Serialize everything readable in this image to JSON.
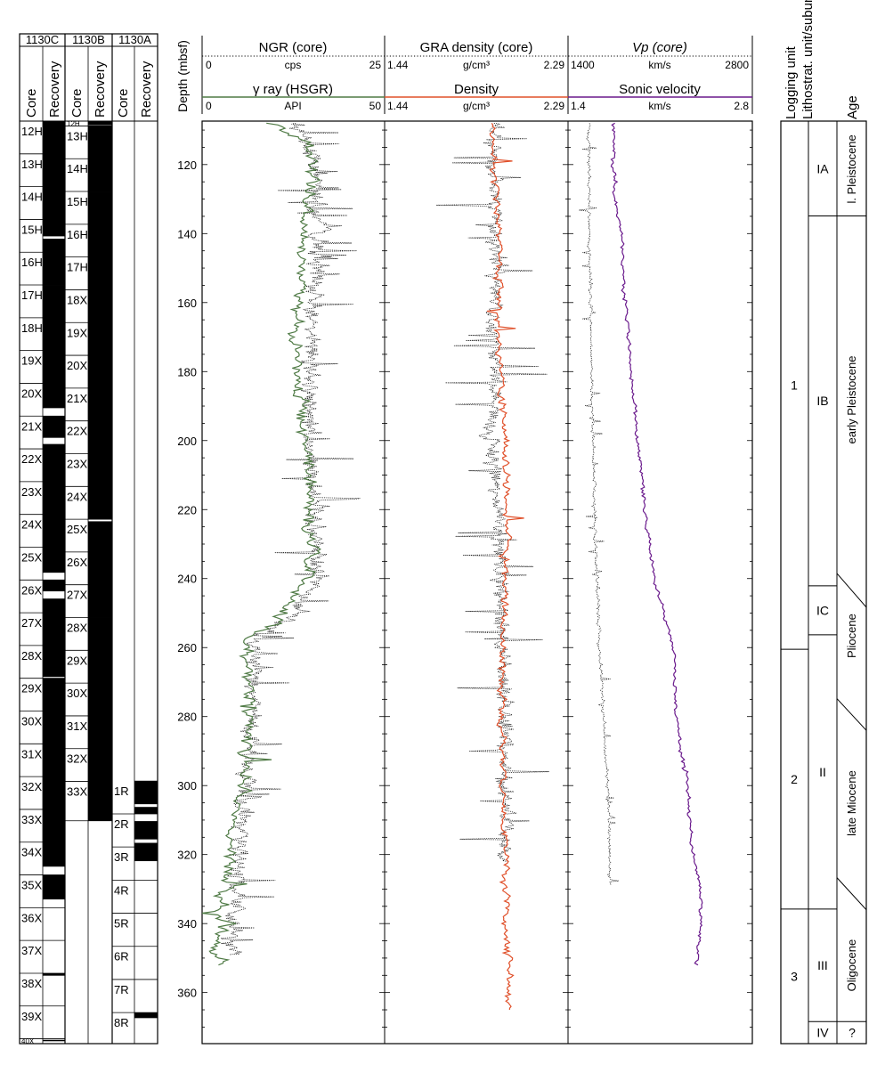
{
  "cores": {
    "holes": [
      {
        "name": "1130C",
        "core_header": "Core",
        "recovery_header": "Recovery",
        "cores": [
          {
            "label": "12H",
            "top": 107.4,
            "bottom": 116.9,
            "recovery": [
              [
                107.4,
                116.9
              ]
            ]
          },
          {
            "label": "13H",
            "top": 116.9,
            "bottom": 126.4,
            "recovery": [
              [
                116.9,
                126.4
              ]
            ]
          },
          {
            "label": "14H",
            "top": 126.4,
            "bottom": 135.9,
            "recovery": [
              [
                126.4,
                135.9
              ]
            ]
          },
          {
            "label": "15H",
            "top": 135.9,
            "bottom": 145.4,
            "recovery": [
              [
                135.9,
                140.8
              ],
              [
                141.5,
                145.4
              ]
            ]
          },
          {
            "label": "16H",
            "top": 145.4,
            "bottom": 154.9,
            "recovery": [
              [
                145.4,
                154.9
              ]
            ]
          },
          {
            "label": "17H",
            "top": 154.9,
            "bottom": 164.4,
            "recovery": [
              [
                154.9,
                164.4
              ]
            ]
          },
          {
            "label": "18H",
            "top": 164.4,
            "bottom": 173.9,
            "recovery": [
              [
                164.4,
                173.9
              ]
            ]
          },
          {
            "label": "19X",
            "top": 173.9,
            "bottom": 183.4,
            "recovery": [
              [
                173.9,
                183.4
              ]
            ]
          },
          {
            "label": "20X",
            "top": 183.4,
            "bottom": 192.9,
            "recovery": [
              [
                183.4,
                190.6
              ]
            ]
          },
          {
            "label": "21X",
            "top": 192.9,
            "bottom": 202.4,
            "recovery": [
              [
                192.9,
                199.2
              ],
              [
                201.0,
                202.4
              ]
            ]
          },
          {
            "label": "22X",
            "top": 202.4,
            "bottom": 211.9,
            "recovery": [
              [
                202.4,
                211.9
              ]
            ]
          },
          {
            "label": "23X",
            "top": 211.9,
            "bottom": 221.4,
            "recovery": [
              [
                211.9,
                221.4
              ]
            ]
          },
          {
            "label": "24X",
            "top": 221.4,
            "bottom": 230.9,
            "recovery": [
              [
                221.4,
                230.9
              ]
            ]
          },
          {
            "label": "25X",
            "top": 230.9,
            "bottom": 240.4,
            "recovery": [
              [
                230.9,
                238.3
              ]
            ]
          },
          {
            "label": "26X",
            "top": 240.4,
            "bottom": 249.9,
            "recovery": [
              [
                240.4,
                243.7
              ],
              [
                245.8,
                249.9
              ]
            ]
          },
          {
            "label": "27X",
            "top": 249.9,
            "bottom": 259.4,
            "recovery": [
              [
                249.9,
                259.4
              ]
            ]
          },
          {
            "label": "28X",
            "top": 259.4,
            "bottom": 268.9,
            "recovery": [
              [
                259.4,
                268.5
              ]
            ]
          },
          {
            "label": "29X",
            "top": 268.9,
            "bottom": 278.4,
            "recovery": [
              [
                268.9,
                278.4
              ]
            ]
          },
          {
            "label": "30X",
            "top": 278.4,
            "bottom": 287.9,
            "recovery": [
              [
                278.4,
                287.9
              ]
            ]
          },
          {
            "label": "31X",
            "top": 287.9,
            "bottom": 297.4,
            "recovery": [
              [
                287.9,
                297.4
              ]
            ]
          },
          {
            "label": "32X",
            "top": 297.4,
            "bottom": 306.9,
            "recovery": [
              [
                297.4,
                306.9
              ]
            ]
          },
          {
            "label": "33X",
            "top": 306.9,
            "bottom": 316.4,
            "recovery": [
              [
                306.9,
                316.4
              ]
            ]
          },
          {
            "label": "34X",
            "top": 316.4,
            "bottom": 325.9,
            "recovery": [
              [
                316.4,
                323.5
              ]
            ]
          },
          {
            "label": "35X",
            "top": 325.9,
            "bottom": 335.4,
            "recovery": [
              [
                325.9,
                333.0
              ]
            ]
          },
          {
            "label": "36X",
            "top": 335.4,
            "bottom": 344.9,
            "recovery": []
          },
          {
            "label": "37X",
            "top": 344.9,
            "bottom": 354.4,
            "recovery": []
          },
          {
            "label": "38X",
            "top": 354.4,
            "bottom": 363.9,
            "recovery": [
              [
                354.4,
                355.1
              ]
            ]
          },
          {
            "label": "39X",
            "top": 363.9,
            "bottom": 373.4,
            "recovery": []
          },
          {
            "label": "40X",
            "top": 373.4,
            "bottom": 374.8,
            "recovery": [
              [
                373.7,
                374.1
              ]
            ]
          }
        ]
      },
      {
        "name": "1130B",
        "core_header": "Core",
        "recovery_header": "Recovery",
        "cores": [
          {
            "label": "12H",
            "top": 107.4,
            "bottom": 108.8,
            "recovery": [
              [
                107.4,
                108.6
              ]
            ]
          },
          {
            "label": "13H",
            "top": 108.8,
            "bottom": 118.3,
            "recovery": [
              [
                108.8,
                118.3
              ]
            ]
          },
          {
            "label": "14H",
            "top": 118.3,
            "bottom": 127.8,
            "recovery": [
              [
                118.3,
                127.8
              ]
            ]
          },
          {
            "label": "15H",
            "top": 127.8,
            "bottom": 137.3,
            "recovery": [
              [
                127.8,
                137.3
              ]
            ]
          },
          {
            "label": "16H",
            "top": 137.3,
            "bottom": 146.8,
            "recovery": [
              [
                137.3,
                146.8
              ]
            ]
          },
          {
            "label": "17H",
            "top": 146.8,
            "bottom": 156.3,
            "recovery": [
              [
                146.8,
                156.3
              ]
            ]
          },
          {
            "label": "18X",
            "top": 156.3,
            "bottom": 165.8,
            "recovery": [
              [
                156.3,
                165.8
              ]
            ]
          },
          {
            "label": "19X",
            "top": 165.8,
            "bottom": 175.3,
            "recovery": [
              [
                165.8,
                175.3
              ]
            ]
          },
          {
            "label": "20X",
            "top": 175.3,
            "bottom": 184.8,
            "recovery": [
              [
                175.3,
                184.8
              ]
            ]
          },
          {
            "label": "21X",
            "top": 184.8,
            "bottom": 194.3,
            "recovery": [
              [
                184.8,
                194.3
              ]
            ]
          },
          {
            "label": "22X",
            "top": 194.3,
            "bottom": 203.8,
            "recovery": [
              [
                194.3,
                203.8
              ]
            ]
          },
          {
            "label": "23X",
            "top": 203.8,
            "bottom": 213.3,
            "recovery": [
              [
                203.8,
                213.3
              ]
            ]
          },
          {
            "label": "24X",
            "top": 213.3,
            "bottom": 222.8,
            "recovery": [
              [
                213.3,
                222.8
              ]
            ]
          },
          {
            "label": "25X",
            "top": 222.8,
            "bottom": 232.3,
            "recovery": [
              [
                223.4,
                232.3
              ]
            ]
          },
          {
            "label": "26X",
            "top": 232.3,
            "bottom": 241.8,
            "recovery": [
              [
                232.3,
                241.8
              ]
            ]
          },
          {
            "label": "27X",
            "top": 241.8,
            "bottom": 251.3,
            "recovery": [
              [
                241.8,
                251.3
              ]
            ]
          },
          {
            "label": "28X",
            "top": 251.3,
            "bottom": 260.8,
            "recovery": [
              [
                251.3,
                260.8
              ]
            ]
          },
          {
            "label": "29X",
            "top": 260.8,
            "bottom": 270.3,
            "recovery": [
              [
                260.8,
                270.3
              ]
            ]
          },
          {
            "label": "30X",
            "top": 270.3,
            "bottom": 279.8,
            "recovery": [
              [
                270.3,
                279.8
              ]
            ]
          },
          {
            "label": "31X",
            "top": 279.8,
            "bottom": 289.3,
            "recovery": [
              [
                279.8,
                289.3
              ]
            ]
          },
          {
            "label": "32X",
            "top": 289.3,
            "bottom": 298.8,
            "recovery": [
              [
                289.3,
                298.8
              ]
            ]
          },
          {
            "label": "33X",
            "top": 298.8,
            "bottom": 310.2,
            "recovery": [
              [
                298.8,
                310.2
              ]
            ]
          }
        ]
      },
      {
        "name": "1130A",
        "core_header": "Core",
        "recovery_header": "Recovery",
        "cores": [
          {
            "label": "1R",
            "top": 298.6,
            "bottom": 308.2,
            "recovery": [
              [
                298.6,
                305.4
              ],
              [
                306.2,
                308.2
              ]
            ]
          },
          {
            "label": "2R",
            "top": 308.2,
            "bottom": 317.8,
            "recovery": [
              [
                310.3,
                315.6
              ],
              [
                316.6,
                317.8
              ]
            ]
          },
          {
            "label": "3R",
            "top": 317.8,
            "bottom": 327.4,
            "recovery": [
              [
                317.8,
                321.9
              ]
            ]
          },
          {
            "label": "4R",
            "top": 327.4,
            "bottom": 337.0,
            "recovery": []
          },
          {
            "label": "5R",
            "top": 337.0,
            "bottom": 346.6,
            "recovery": []
          },
          {
            "label": "6R",
            "top": 346.6,
            "bottom": 356.2,
            "recovery": []
          },
          {
            "label": "7R",
            "top": 356.2,
            "bottom": 365.8,
            "recovery": []
          },
          {
            "label": "8R",
            "top": 365.8,
            "bottom": 374.8,
            "recovery": [
              [
                365.8,
                367.4
              ]
            ]
          }
        ]
      }
    ]
  },
  "chart_data": {
    "type": "line",
    "ylabel": "Depth (mbsf)",
    "ylim": [
      107.4,
      374.8
    ],
    "y_ticks": [
      120,
      140,
      160,
      180,
      200,
      220,
      240,
      260,
      280,
      300,
      320,
      340,
      360
    ],
    "y_minor_step": 5,
    "tracks": [
      {
        "core_title": "NGR (core)",
        "core_unit": "cps",
        "core_min": "0",
        "core_max": "25",
        "core_range": [
          0,
          25
        ],
        "log_title": "γ ray (HSGR)",
        "log_unit": "API",
        "log_min": "0",
        "log_max": "50",
        "log_range": [
          0,
          50
        ],
        "log_color": "#4f7a45",
        "core_depth_range": [
          108,
          349
        ],
        "log_depth_range": [
          108,
          352
        ]
      },
      {
        "core_title": "GRA density (core)",
        "core_unit": "g/cm³",
        "core_min": "1.44",
        "core_max": "2.29",
        "core_range": [
          1.44,
          2.29
        ],
        "log_title": "Density",
        "log_unit": "g/cm³",
        "log_min": "1.44",
        "log_max": "2.29",
        "log_range": [
          1.44,
          2.29
        ],
        "log_color": "#e0502a",
        "core_depth_range": [
          108,
          322
        ],
        "log_depth_range": [
          108,
          365
        ]
      },
      {
        "core_title": "Vp (core)",
        "core_unit": "km/s",
        "core_min": "1400",
        "core_max": "2800",
        "core_range": [
          1400,
          2800
        ],
        "log_title": "Sonic velocity",
        "log_unit": "km/s",
        "log_min": "1.4",
        "log_max": "2.8",
        "log_range": [
          1.4,
          2.8
        ],
        "log_color": "#6a1a8c",
        "core_depth_range": [
          108,
          329
        ],
        "log_depth_range": [
          108,
          352
        ]
      }
    ]
  },
  "units": {
    "logging_header": "Logging unit",
    "litho_header": "Lithostrat. unit/subunit",
    "age_header": "Age",
    "logging": [
      {
        "label": "1",
        "top": 107.4,
        "bottom": 260.5
      },
      {
        "label": "2",
        "top": 260.5,
        "bottom": 335.8
      },
      {
        "label": "3",
        "top": 335.8,
        "bottom": 374.8
      }
    ],
    "litho": [
      {
        "label": "IA",
        "top": 107.4,
        "bottom": 134.9
      },
      {
        "label": "IB",
        "top": 134.9,
        "bottom": 242.1
      },
      {
        "label": "IC",
        "top": 242.1,
        "bottom": 256.3
      },
      {
        "label": "II",
        "top": 256.3,
        "bottom": 335.8
      },
      {
        "label": "III",
        "top": 335.8,
        "bottom": 368.4
      },
      {
        "label": "IV",
        "top": 368.4,
        "bottom": 374.8
      }
    ],
    "ages": [
      {
        "label": "l. Pleistocene",
        "center": 121.3
      },
      {
        "label": "early Pleistocene",
        "center": 188.2
      },
      {
        "label": "Pliocene",
        "center": 256.6
      },
      {
        "label": "late Miocene",
        "center": 305.1
      },
      {
        "label": "Oligocene",
        "center": 352.1
      },
      {
        "label": "?",
        "center": 371.6
      }
    ],
    "age_lines": [
      {
        "y": 134.9
      },
      {
        "y_left": 238.5,
        "y_right": 248.3
      },
      {
        "y_left": 274.8,
        "y_right": 284.0
      },
      {
        "y_left": 326.7,
        "y_right": 336.0
      },
      {
        "y": 368.4
      }
    ]
  }
}
